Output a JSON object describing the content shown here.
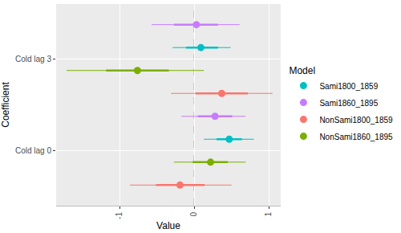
{
  "chart_data": {
    "type": "coefficient",
    "orientation": "horizontal",
    "x_label": "Value",
    "y_label": "Coefficient",
    "legend_title": "Model",
    "legend": "right",
    "grid": true,
    "categories": [
      "Cold lag 0",
      "Cold lag 3"
    ],
    "xlim": [
      -1.85,
      1.16
    ],
    "xticks": [
      -1,
      0,
      1
    ],
    "reference_x": 0,
    "series": [
      {
        "name": "Sami1800_1859",
        "color": "#00BFC4",
        "values": [
          0.47,
          0.09
        ],
        "inner_low": [
          0.3,
          -0.11
        ],
        "inner_high": [
          0.64,
          0.32
        ],
        "outer_low": [
          0.13,
          -0.29
        ],
        "outer_high": [
          0.8,
          0.49
        ]
      },
      {
        "name": "Sami1860_1895",
        "color": "#C77CFF",
        "values": [
          0.28,
          0.03
        ],
        "inner_low": [
          0.05,
          -0.27
        ],
        "inner_high": [
          0.51,
          0.32
        ],
        "outer_low": [
          -0.17,
          -0.57
        ],
        "outer_high": [
          0.69,
          0.61
        ]
      },
      {
        "name": "NonSami1800_1859",
        "color": "#F8766D",
        "values": [
          -0.19,
          0.37
        ],
        "inner_low": [
          -0.51,
          0.02
        ],
        "inner_high": [
          0.14,
          0.72
        ],
        "outer_low": [
          -0.86,
          -0.31
        ],
        "outer_high": [
          0.5,
          1.05
        ]
      },
      {
        "name": "NonSami1860_1895",
        "color": "#7CAE00",
        "values": [
          0.22,
          -0.76
        ],
        "inner_low": [
          -0.02,
          -1.18
        ],
        "inner_high": [
          0.45,
          -0.34
        ],
        "outer_low": [
          -0.27,
          -1.71
        ],
        "outer_high": [
          0.69,
          0.13
        ]
      }
    ]
  }
}
